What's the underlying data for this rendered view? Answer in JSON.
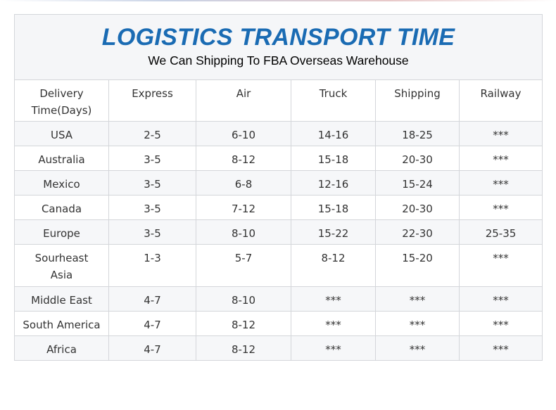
{
  "header": {
    "title": "LOGISTICS TRANSPORT TIME",
    "subtitle": "We Can Shipping To FBA Overseas Warehouse"
  },
  "table": {
    "columns": [
      "Delivery Time(Days)",
      "Express",
      "Air",
      "Truck",
      "Shipping",
      "Railway"
    ],
    "rows": [
      [
        "USA",
        "2-5",
        "6-10",
        "14-16",
        "18-25",
        "***"
      ],
      [
        "Australia",
        "3-5",
        "8-12",
        "15-18",
        "20-30",
        "***"
      ],
      [
        "Mexico",
        "3-5",
        "6-8",
        "12-16",
        "15-24",
        "***"
      ],
      [
        "Canada",
        "3-5",
        "7-12",
        "15-18",
        "20-30",
        "***"
      ],
      [
        "Europe",
        "3-5",
        "8-10",
        "15-22",
        "22-30",
        "25-35"
      ],
      [
        "Sourheast Asia",
        "1-3",
        "5-7",
        "8-12",
        "15-20",
        "***"
      ],
      [
        "Middle East",
        "4-7",
        "8-10",
        "***",
        "***",
        "***"
      ],
      [
        "South America",
        "4-7",
        "8-12",
        "***",
        "***",
        "***"
      ],
      [
        "Africa",
        "4-7",
        "8-12",
        "***",
        "***",
        "***"
      ]
    ]
  }
}
